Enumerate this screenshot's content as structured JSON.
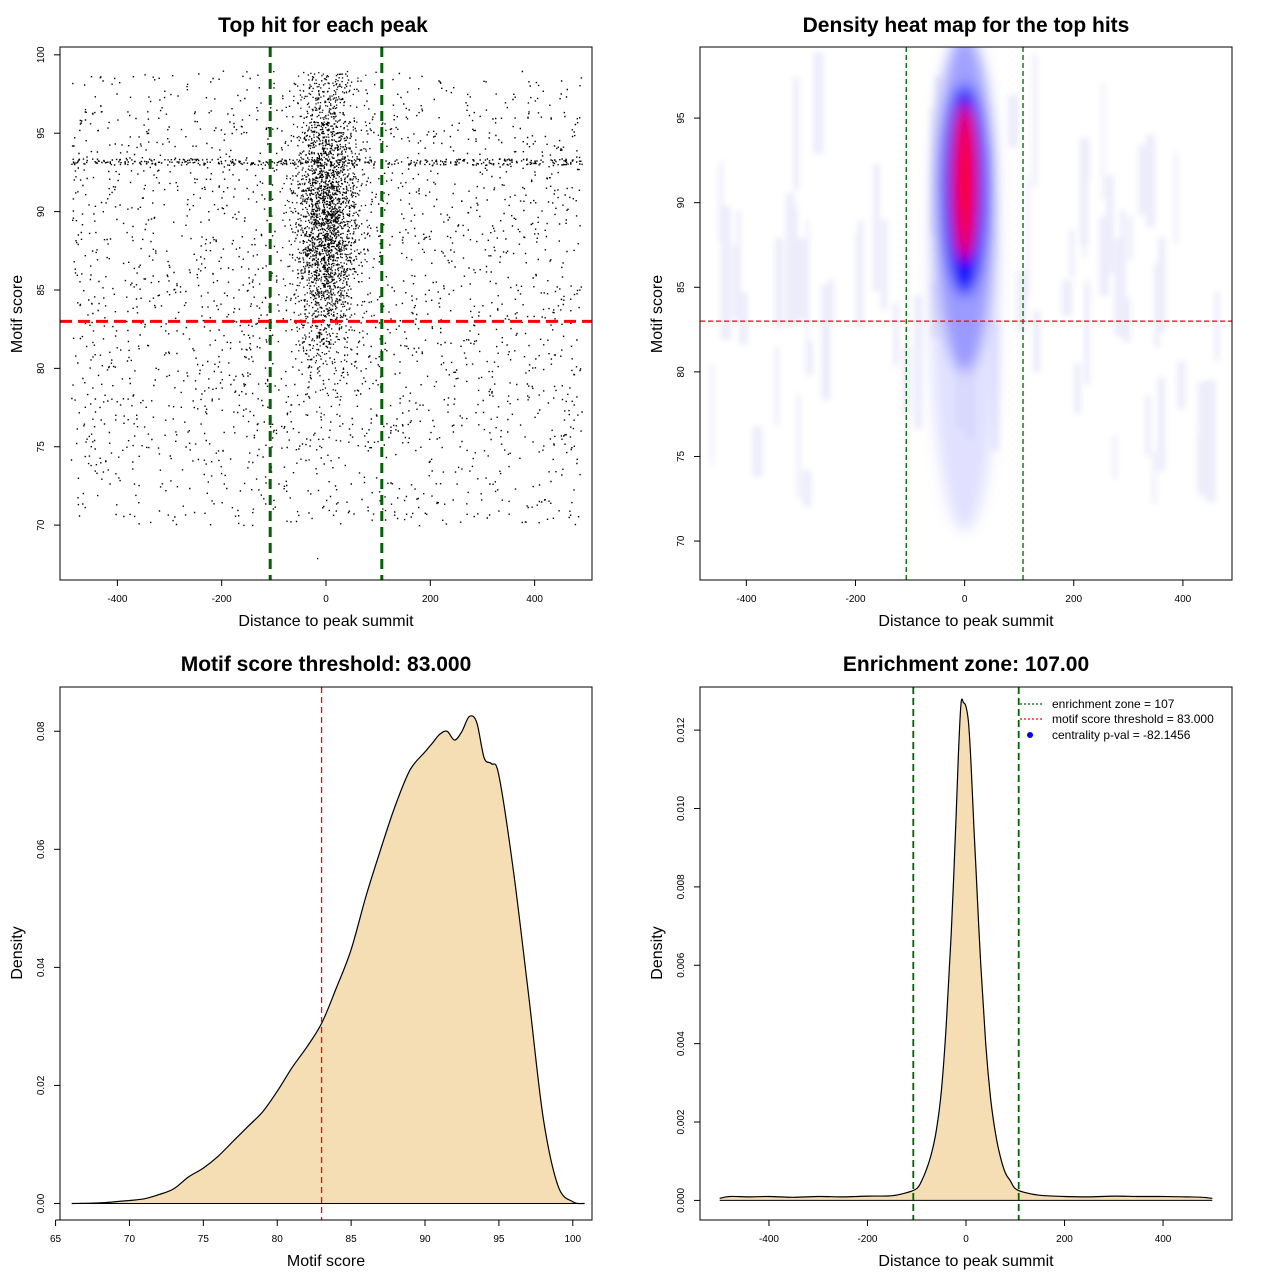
{
  "chart_data": [
    {
      "type": "scatter",
      "title": "Top hit for each peak",
      "xlabel": "Distance to peak summit",
      "ylabel": "Motif score",
      "xlim": [
        -510,
        510
      ],
      "ylim": [
        66.5,
        100.5
      ],
      "xticks": [
        -400,
        -200,
        0,
        200,
        400
      ],
      "yticks": [
        70,
        75,
        80,
        85,
        90,
        95,
        100
      ],
      "xtick_labels": [
        "-400",
        "-200",
        "0",
        "200",
        "400"
      ],
      "ytick_labels": [
        "70",
        "75",
        "80",
        "85",
        "90",
        "95",
        "100"
      ],
      "enrichment_zone": 107,
      "score_threshold": 83.0,
      "core": {
        "center": 0,
        "sd": 30,
        "score_mean": 89.5,
        "score_sd": 4.5
      },
      "background_points_approx": 2800,
      "core_points_approx": 20000
    },
    {
      "type": "heatmap",
      "title": "Density heat map for the top hits",
      "xlabel": "Distance to peak summit",
      "ylabel": "Motif score",
      "xlim": [
        -485,
        490
      ],
      "ylim": [
        67.7,
        99.2
      ],
      "xticks": [
        -400,
        -200,
        0,
        200,
        400
      ],
      "yticks": [
        70,
        75,
        80,
        85,
        90,
        95
      ],
      "xtick_labels": [
        "-400",
        "-200",
        "0",
        "200",
        "400"
      ],
      "ytick_labels": [
        "70",
        "75",
        "80",
        "85",
        "90",
        "95"
      ],
      "enrichment_zone": 107,
      "score_threshold": 83.0,
      "colors": [
        "#ffffff",
        "#0000ff",
        "#ff0000"
      ]
    },
    {
      "type": "area",
      "title": "Motif score threshold: 83.000",
      "xlabel": "Motif score",
      "ylabel": "Density",
      "xlim": [
        65.3,
        101.3
      ],
      "ylim": [
        -0.0028,
        0.0875
      ],
      "xticks": [
        65,
        70,
        75,
        80,
        85,
        90,
        95,
        100
      ],
      "yticks": [
        0,
        0.02,
        0.04,
        0.06,
        0.08
      ],
      "xtick_labels": [
        "65",
        "70",
        "75",
        "80",
        "85",
        "90",
        "95",
        "100"
      ],
      "ytick_labels": [
        "0.00",
        "0.02",
        "0.04",
        "0.06",
        "0.08"
      ],
      "threshold": 83.0,
      "x": [
        66.1,
        68,
        70,
        71,
        72,
        73,
        74,
        75,
        76,
        77,
        78,
        79,
        80,
        81,
        82,
        83,
        84,
        85,
        86,
        87,
        88,
        89,
        90,
        90.5,
        91,
        91.5,
        92,
        92.5,
        93,
        93.5,
        94,
        94.5,
        95,
        96,
        97,
        98,
        99,
        100,
        100.8
      ],
      "y": [
        0,
        0.0001,
        0.0005,
        0.0008,
        0.0015,
        0.0025,
        0.0045,
        0.006,
        0.008,
        0.0105,
        0.013,
        0.0155,
        0.019,
        0.023,
        0.0265,
        0.0305,
        0.0365,
        0.043,
        0.052,
        0.06,
        0.0675,
        0.0735,
        0.0765,
        0.078,
        0.0795,
        0.08,
        0.0785,
        0.08,
        0.0825,
        0.0815,
        0.0755,
        0.0745,
        0.0725,
        0.056,
        0.0355,
        0.0145,
        0.003,
        0.0003,
        0
      ]
    },
    {
      "type": "area",
      "title": "Enrichment zone: 107.00",
      "xlabel": "Distance to peak summit",
      "ylabel": "Density",
      "xlim": [
        -540,
        540
      ],
      "ylim": [
        -0.0005,
        0.0131
      ],
      "xticks": [
        -400,
        -200,
        0,
        200,
        400
      ],
      "yticks": [
        0,
        0.002,
        0.004,
        0.006,
        0.008,
        0.01,
        0.012
      ],
      "xtick_labels": [
        "-400",
        "-200",
        "0",
        "200",
        "400"
      ],
      "ytick_labels": [
        "0.000",
        "0.002",
        "0.004",
        "0.006",
        "0.008",
        "0.010",
        "0.012"
      ],
      "enrichment_zone": 107,
      "x": [
        -500,
        -480,
        -440,
        -400,
        -350,
        -300,
        -250,
        -200,
        -150,
        -120,
        -100,
        -90,
        -80,
        -70,
        -60,
        -50,
        -40,
        -30,
        -20,
        -15,
        -10,
        -5,
        0,
        5,
        10,
        15,
        20,
        30,
        40,
        50,
        60,
        70,
        80,
        90,
        100,
        120,
        150,
        200,
        250,
        300,
        350,
        400,
        450,
        480,
        500
      ],
      "y": [
        5e-05,
        0.0001,
        9e-05,
        0.0001,
        8e-05,
        0.0001,
        9e-05,
        0.00011,
        0.00012,
        0.0002,
        0.0003,
        0.0005,
        0.0008,
        0.0012,
        0.0018,
        0.0028,
        0.0045,
        0.0068,
        0.0098,
        0.0115,
        0.0127,
        0.0127,
        0.0126,
        0.0122,
        0.0112,
        0.0098,
        0.0085,
        0.006,
        0.004,
        0.0026,
        0.0017,
        0.0011,
        0.0007,
        0.0005,
        0.0003,
        0.0002,
        0.00013,
        0.0001,
        9e-05,
        0.00011,
        0.0001,
        0.0001,
        9e-05,
        8e-05,
        5e-05
      ],
      "legend": {
        "placement": "top-right",
        "entries": [
          {
            "label": "enrichment zone = 107",
            "color": "#006400",
            "style": "dotted line"
          },
          {
            "label": "motif score threshold = 83.000",
            "color": "#ff0000",
            "style": "dotted line"
          },
          {
            "label": "centrality p-val = -82.1456",
            "color": "#0000ff",
            "style": "point"
          }
        ]
      }
    }
  ]
}
